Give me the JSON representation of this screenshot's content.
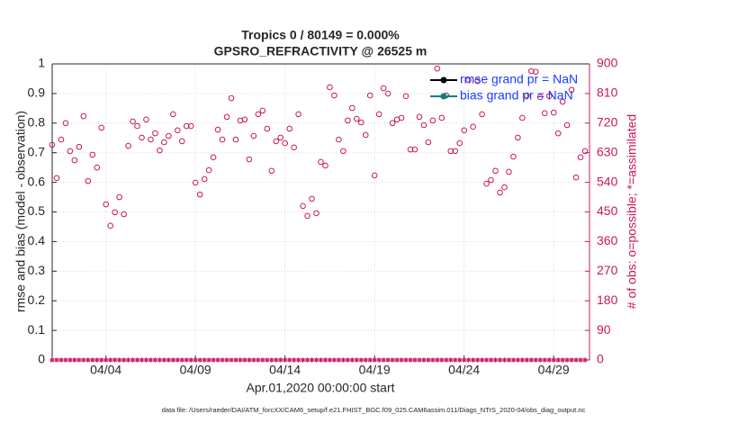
{
  "chart_data": {
    "type": "scatter",
    "title": "Tropics 0 / 80149 = 0.000%",
    "subtitle": "GPSRO_REFRACTIVITY @ 26525 m",
    "ylabel": "rmse and bias (model - observation)",
    "y2label": "# of obs: o=possible; *=assimilated",
    "xlabel": "Apr.01,2020 00:00:00 start",
    "footnote": "data file: /Users/raeder/DAI/ATM_forcXX/CAM6_setup/f.e21.FHIST_BGC.f09_025.CAM6assim.011/Diags_NTrS_2020-04/obs_diag_output.nc",
    "legend": [
      {
        "label": "rmse grand pr = NaN",
        "color": "#000000"
      },
      {
        "label": "bias grand pr = NaN",
        "color": "#008080"
      }
    ],
    "legend_text_color": "#1a3cff",
    "grid": true,
    "xlim": [
      0,
      30
    ],
    "xticks": [
      {
        "value": 3,
        "label": "04/04"
      },
      {
        "value": 8,
        "label": "04/09"
      },
      {
        "value": 13,
        "label": "04/14"
      },
      {
        "value": 18,
        "label": "04/19"
      },
      {
        "value": 23,
        "label": "04/24"
      },
      {
        "value": 28,
        "label": "04/29"
      }
    ],
    "ylim": [
      0,
      1
    ],
    "yticks": [
      0,
      0.1,
      0.2,
      0.3,
      0.4,
      0.5,
      0.6,
      0.7,
      0.8,
      0.9,
      1
    ],
    "y2lim": [
      0,
      900
    ],
    "y2ticks": [
      0,
      90,
      180,
      270,
      360,
      450,
      540,
      630,
      720,
      810,
      900
    ],
    "y2color": "#c8175e",
    "x": [
      0,
      0.25,
      0.5,
      0.75,
      1,
      1.25,
      1.5,
      1.75,
      2,
      2.25,
      2.5,
      2.75,
      3,
      3.25,
      3.5,
      3.75,
      4,
      4.25,
      4.5,
      4.75,
      5,
      5.25,
      5.5,
      5.75,
      6,
      6.25,
      6.5,
      6.75,
      7,
      7.25,
      7.5,
      7.75,
      8,
      8.25,
      8.5,
      8.75,
      9,
      9.25,
      9.5,
      9.75,
      10,
      10.25,
      10.5,
      10.75,
      11,
      11.25,
      11.5,
      11.75,
      12,
      12.25,
      12.5,
      12.75,
      13,
      13.25,
      13.5,
      13.75,
      14,
      14.25,
      14.5,
      14.75,
      15,
      15.25,
      15.5,
      15.75,
      16,
      16.25,
      16.5,
      16.75,
      17,
      17.25,
      17.5,
      17.75,
      18,
      18.25,
      18.5,
      18.75,
      19,
      19.25,
      19.5,
      19.75,
      20,
      20.25,
      20.5,
      20.75,
      21,
      21.25,
      21.5,
      21.75,
      22,
      22.25,
      22.5,
      22.75,
      23,
      23.25,
      23.5,
      23.75,
      24,
      24.25,
      24.5,
      24.75,
      25,
      25.25,
      25.5,
      25.75,
      26,
      26.25,
      26.5,
      26.75,
      27,
      27.25,
      27.5,
      27.75,
      28,
      28.25,
      28.5,
      28.75,
      29,
      29.25,
      29.5,
      29.75
    ],
    "series": [
      {
        "color": "#c8175e",
        "marker": "o",
        "axis": "y2",
        "values": [
          654,
          553,
          670,
          720,
          635,
          607,
          648,
          741,
          544,
          624,
          585,
          706,
          473,
          408,
          449,
          495,
          443,
          651,
          725,
          711,
          676,
          731,
          670,
          689,
          637,
          662,
          681,
          747,
          698,
          665,
          711,
          711,
          539,
          503,
          550,
          577,
          616,
          700,
          670,
          739,
          796,
          670,
          728,
          731,
          610,
          681,
          747,
          758,
          703,
          575,
          665,
          676,
          659,
          703,
          646,
          747,
          468,
          438,
          490,
          446,
          602,
          591,
          829,
          804,
          670,
          635,
          728,
          766,
          733,
          722,
          684,
          804,
          561,
          747,
          826,
          810,
          720,
          731,
          736,
          802,
          640,
          640,
          739,
          714,
          662,
          728,
          886,
          736,
          804,
          635,
          635,
          659,
          698,
          851,
          709,
          848,
          747,
          536,
          547,
          575,
          509,
          525,
          572,
          618,
          676,
          736,
          804,
          878,
          876,
          799,
          750,
          802,
          752,
          689,
          785,
          714,
          821,
          555,
          616,
          635
        ]
      },
      {
        "color": "#c8175e",
        "marker": "*",
        "axis": "y2",
        "values": [
          0,
          0,
          0,
          0,
          0,
          0,
          0,
          0,
          0,
          0,
          0,
          0,
          0,
          0,
          0,
          0,
          0,
          0,
          0,
          0,
          0,
          0,
          0,
          0,
          0,
          0,
          0,
          0,
          0,
          0,
          0,
          0,
          0,
          0,
          0,
          0,
          0,
          0,
          0,
          0,
          0,
          0,
          0,
          0,
          0,
          0,
          0,
          0,
          0,
          0,
          0,
          0,
          0,
          0,
          0,
          0,
          0,
          0,
          0,
          0,
          0,
          0,
          0,
          0,
          0,
          0,
          0,
          0,
          0,
          0,
          0,
          0,
          0,
          0,
          0,
          0,
          0,
          0,
          0,
          0,
          0,
          0,
          0,
          0,
          0,
          0,
          0,
          0,
          0,
          0,
          0,
          0,
          0,
          0,
          0,
          0,
          0,
          0,
          0,
          0,
          0,
          0,
          0,
          0,
          0,
          0,
          0,
          0,
          0,
          0,
          0,
          0,
          0,
          0,
          0,
          0,
          0,
          0,
          0,
          0
        ]
      }
    ]
  }
}
